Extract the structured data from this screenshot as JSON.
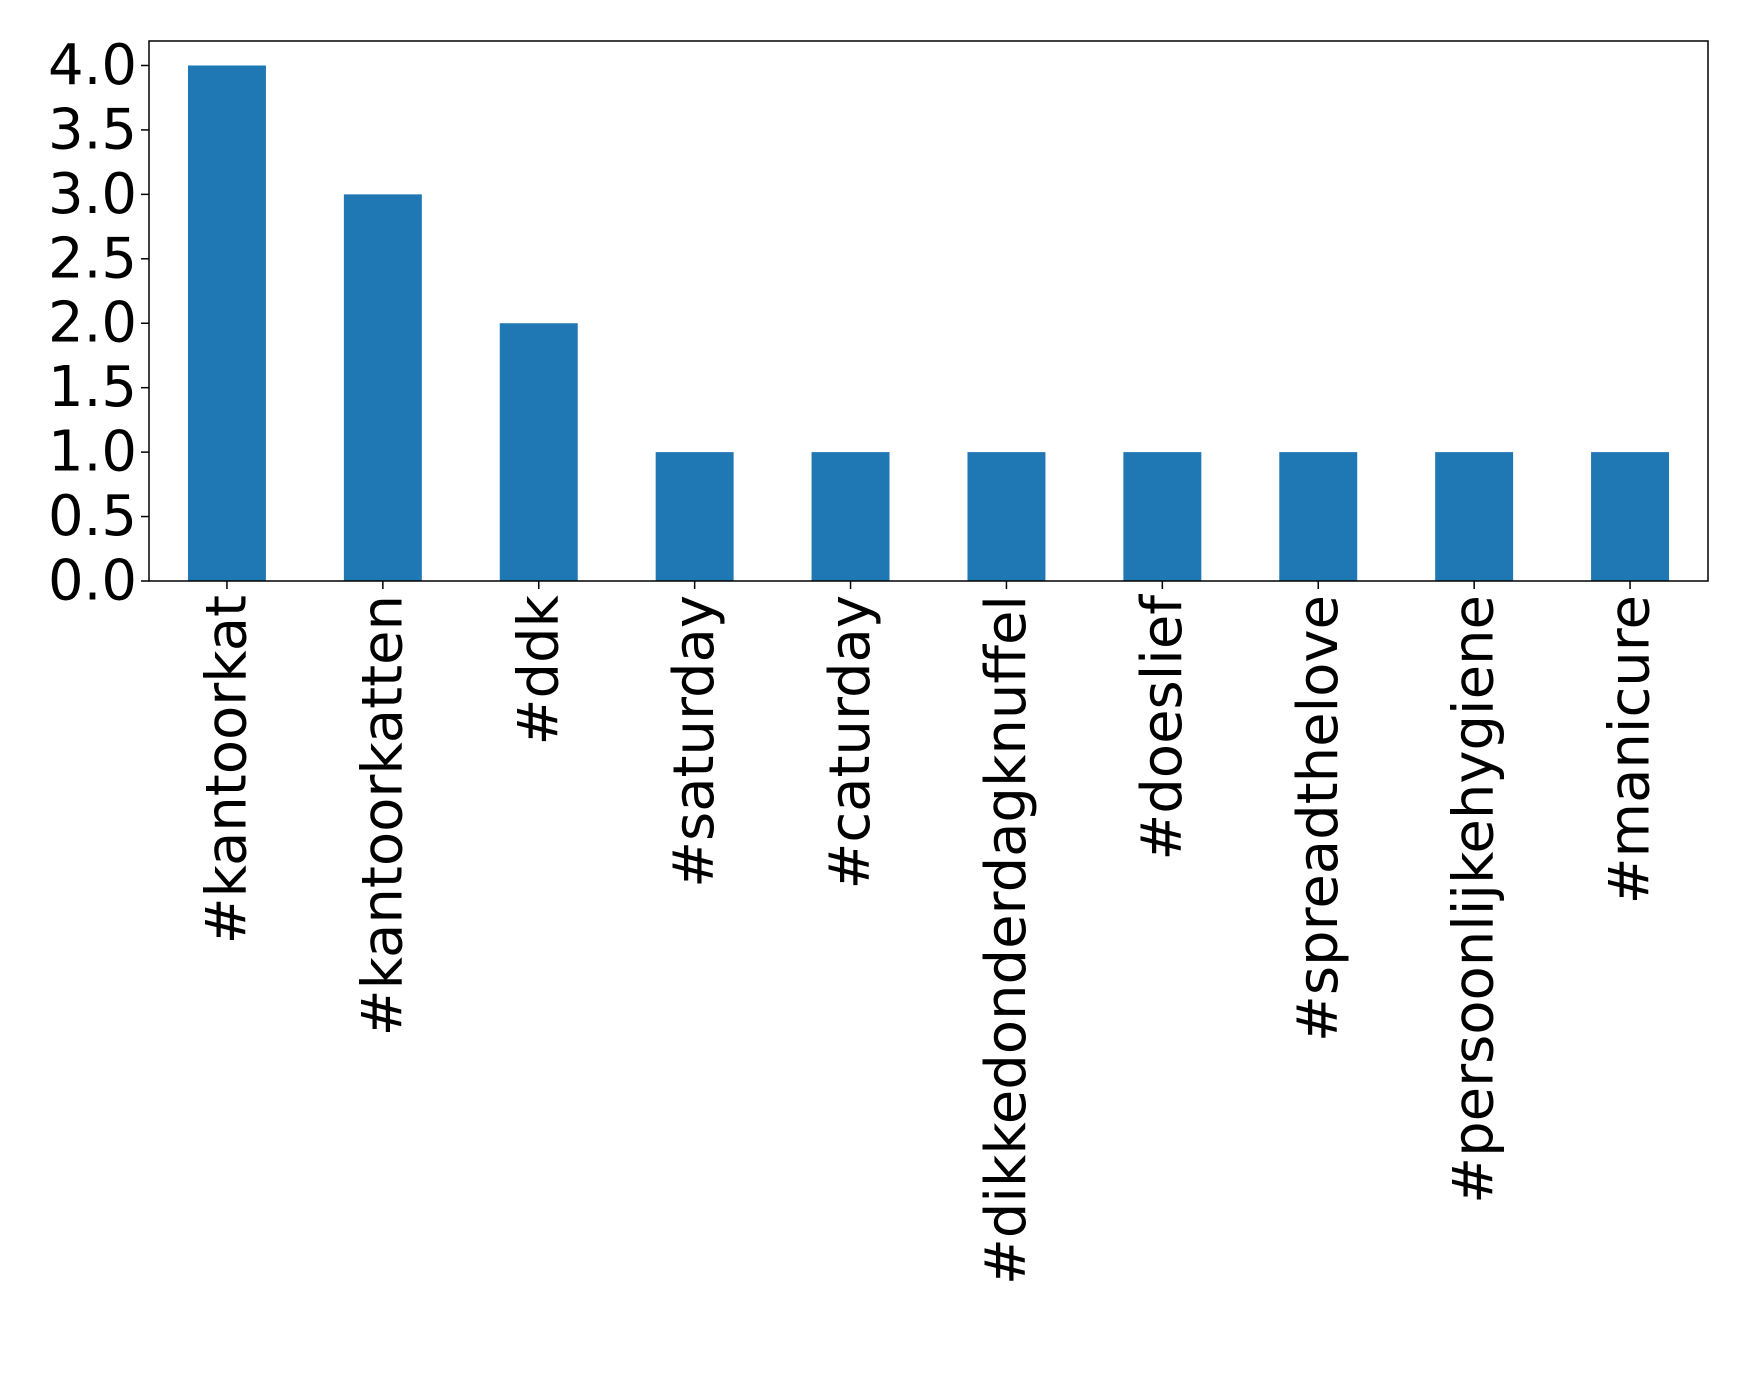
{
  "chart_data": {
    "type": "bar",
    "categories": [
      "#kantoorkat",
      "#kantoorkatten",
      "#ddk",
      "#saturday",
      "#caturday",
      "#dikkedonderdagknuffel",
      "#doeslief",
      "#spreadthelove",
      "#persoonlijkehygiene",
      "#manicure"
    ],
    "values": [
      4,
      3,
      2,
      1,
      1,
      1,
      1,
      1,
      1,
      1
    ],
    "color": "#1f77b4",
    "ylim": [
      0,
      4.19
    ],
    "yticks": [
      {
        "value": 0,
        "label": "0.0"
      },
      {
        "value": 0.5,
        "label": "0.5"
      },
      {
        "value": 1,
        "label": "1.0"
      },
      {
        "value": 1.5,
        "label": "1.5"
      },
      {
        "value": 2,
        "label": "2.0"
      },
      {
        "value": 2.5,
        "label": "2.5"
      },
      {
        "value": 3,
        "label": "3.0"
      },
      {
        "value": 3.5,
        "label": "3.5"
      },
      {
        "value": 4,
        "label": "4.0"
      }
    ],
    "grid": false
  }
}
